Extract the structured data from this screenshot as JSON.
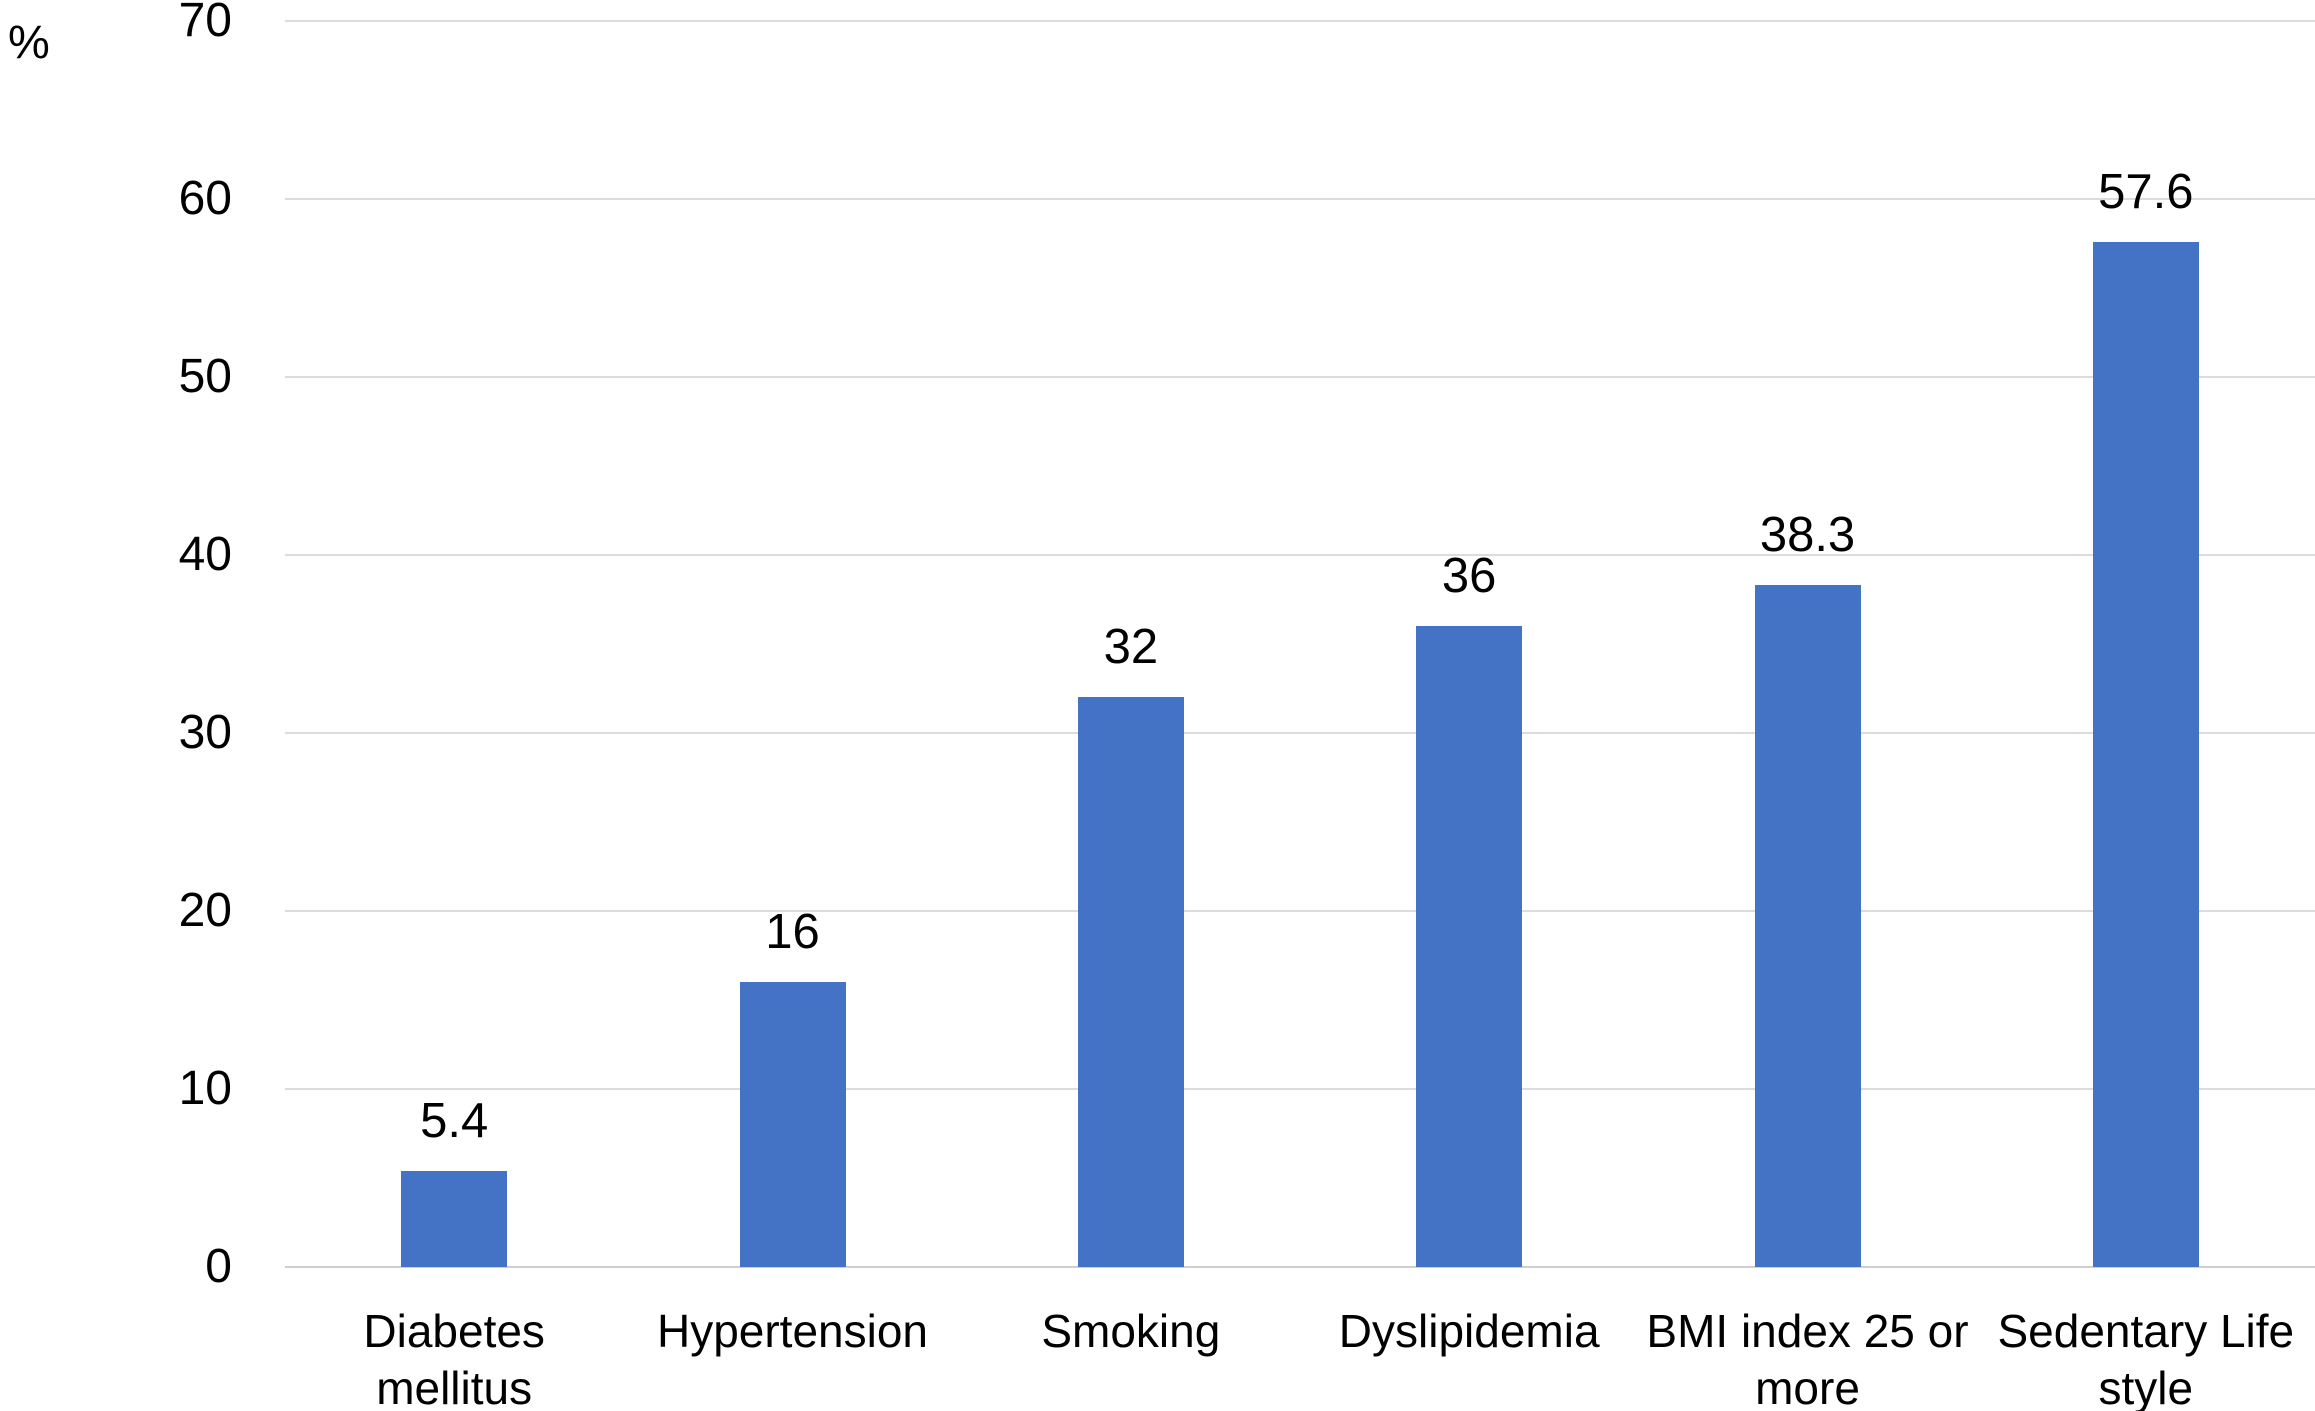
{
  "chart_data": {
    "type": "bar",
    "title": "",
    "xlabel": "",
    "ylabel": "%",
    "categories": [
      "Diabetes mellitus",
      "Hypertension",
      "Smoking",
      "Dyslipidemia",
      "BMI index 25 or more",
      "Sedentary Life style"
    ],
    "category_lines": [
      [
        "Diabetes",
        "mellitus"
      ],
      [
        "Hypertension"
      ],
      [
        "Smoking"
      ],
      [
        "Dyslipidemia"
      ],
      [
        "BMI index 25 or",
        "more"
      ],
      [
        "Sedentary Life",
        "style"
      ]
    ],
    "values": [
      5.4,
      16,
      32,
      36,
      38.3,
      57.6
    ],
    "value_labels": [
      "5.4",
      "16",
      "32",
      "36",
      "38.3",
      "57.6"
    ],
    "ylim": [
      0,
      70
    ],
    "yticks": [
      0,
      10,
      20,
      30,
      40,
      50,
      60,
      70
    ],
    "ytick_labels": [
      "0",
      "10",
      "20",
      "30",
      "40",
      "50",
      "60",
      "70"
    ],
    "grid": true,
    "legend": "none",
    "colors": {
      "bar": "#4472C4",
      "gridline": "#DCDCDC",
      "baseline": "#CFCFCF",
      "text": "#000000",
      "background": "#FFFFFF"
    }
  }
}
